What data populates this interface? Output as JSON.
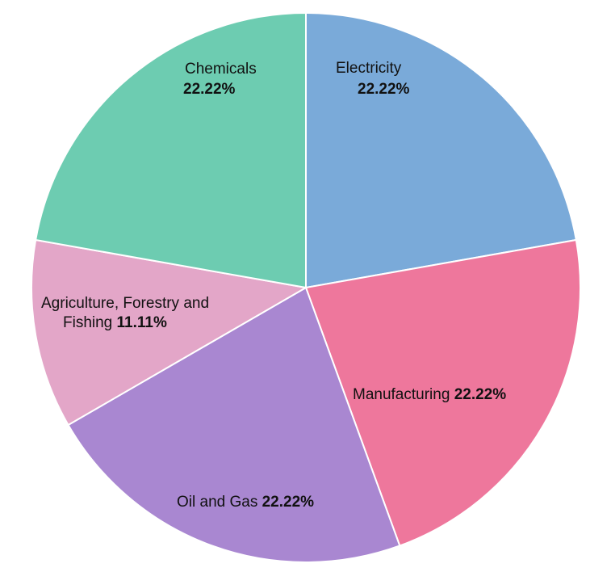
{
  "chart_data": {
    "type": "pie",
    "title": "",
    "slices": [
      {
        "label": "Electricity",
        "percent_label": "22.22%",
        "value": 22.22,
        "color": "#7aaad9"
      },
      {
        "label": "Manufacturing",
        "percent_label": "22.22%",
        "value": 22.22,
        "color": "#ee779c"
      },
      {
        "label": "Oil and Gas",
        "percent_label": "22.22%",
        "value": 22.22,
        "color": "#a987d1"
      },
      {
        "label": "Agriculture, Forestry and Fishing",
        "percent_label": "11.11%",
        "value": 11.11,
        "color": "#e3a6c8"
      },
      {
        "label": "Chemicals",
        "percent_label": "22.22%",
        "value": 22.22,
        "color": "#6dccb1"
      }
    ],
    "start": "top",
    "direction": "clockwise",
    "legend": "none"
  }
}
